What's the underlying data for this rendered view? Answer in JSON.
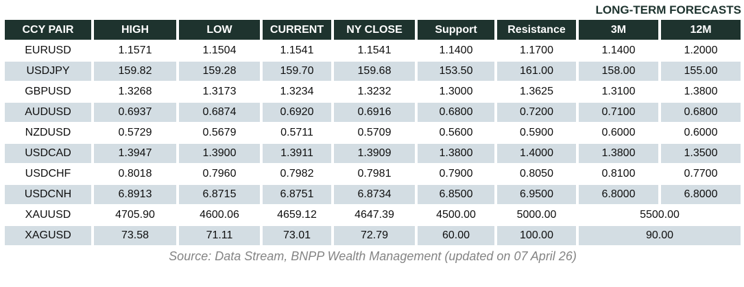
{
  "banner": {
    "label": "LONG-TERM FORECASTS"
  },
  "source": {
    "note": "Source: Data Stream, BNPP Wealth Management (updated on 07 April 26)"
  },
  "colors": {
    "header_bg": "#1e332e",
    "header_text": "#ffffff",
    "row_alt_bg": "#d3dde3",
    "banner_text": "#1d332e",
    "cell_text": "#0d0d0d",
    "source_text": "#848484"
  },
  "chart_data": {
    "type": "table",
    "title": "LONG-TERM FORECASTS",
    "columns": [
      "CCY PAIR",
      "HIGH",
      "LOW",
      "CURRENT",
      "NY CLOSE",
      "Support",
      "Resistance",
      "3M",
      "12M"
    ],
    "rows": [
      {
        "pair": "EURUSD",
        "values": [
          "1.1571",
          "1.1504",
          "1.1541",
          "1.1541",
          "1.1400",
          "1.1700",
          "1.1400",
          "1.2000"
        ]
      },
      {
        "pair": "USDJPY",
        "values": [
          "159.82",
          "159.28",
          "159.70",
          "159.68",
          "153.50",
          "161.00",
          "158.00",
          "155.00"
        ]
      },
      {
        "pair": "GBPUSD",
        "values": [
          "1.3268",
          "1.3173",
          "1.3234",
          "1.3232",
          "1.3000",
          "1.3625",
          "1.3100",
          "1.3800"
        ]
      },
      {
        "pair": "AUDUSD",
        "values": [
          "0.6937",
          "0.6874",
          "0.6920",
          "0.6916",
          "0.6800",
          "0.7200",
          "0.7100",
          "0.6800"
        ]
      },
      {
        "pair": "NZDUSD",
        "values": [
          "0.5729",
          "0.5679",
          "0.5711",
          "0.5709",
          "0.5600",
          "0.5900",
          "0.6000",
          "0.6000"
        ]
      },
      {
        "pair": "USDCAD",
        "values": [
          "1.3947",
          "1.3900",
          "1.3911",
          "1.3909",
          "1.3800",
          "1.4000",
          "1.3800",
          "1.3500"
        ]
      },
      {
        "pair": "USDCHF",
        "values": [
          "0.8018",
          "0.7960",
          "0.7982",
          "0.7981",
          "0.7900",
          "0.8050",
          "0.8100",
          "0.7700"
        ]
      },
      {
        "pair": "USDCNH",
        "values": [
          "6.8913",
          "6.8715",
          "6.8751",
          "6.8734",
          "6.8500",
          "6.9500",
          "6.8000",
          "6.8000"
        ]
      },
      {
        "pair": "XAUUSD",
        "values": [
          "4705.90",
          "4600.06",
          "4659.12",
          "4647.39",
          "4500.00",
          "5000.00"
        ],
        "merged_forecast": "5500.00"
      },
      {
        "pair": "XAGUSD",
        "values": [
          "73.58",
          "71.11",
          "73.01",
          "72.79",
          "60.00",
          "100.00"
        ],
        "merged_forecast": "90.00"
      }
    ],
    "layout_notes": {
      "merged_forecast_spans": [
        "3M",
        "12M"
      ],
      "alternating_row_shading": "odd rows shaded",
      "legend_position": "none",
      "grid": "cell gaps (white separators)"
    }
  }
}
